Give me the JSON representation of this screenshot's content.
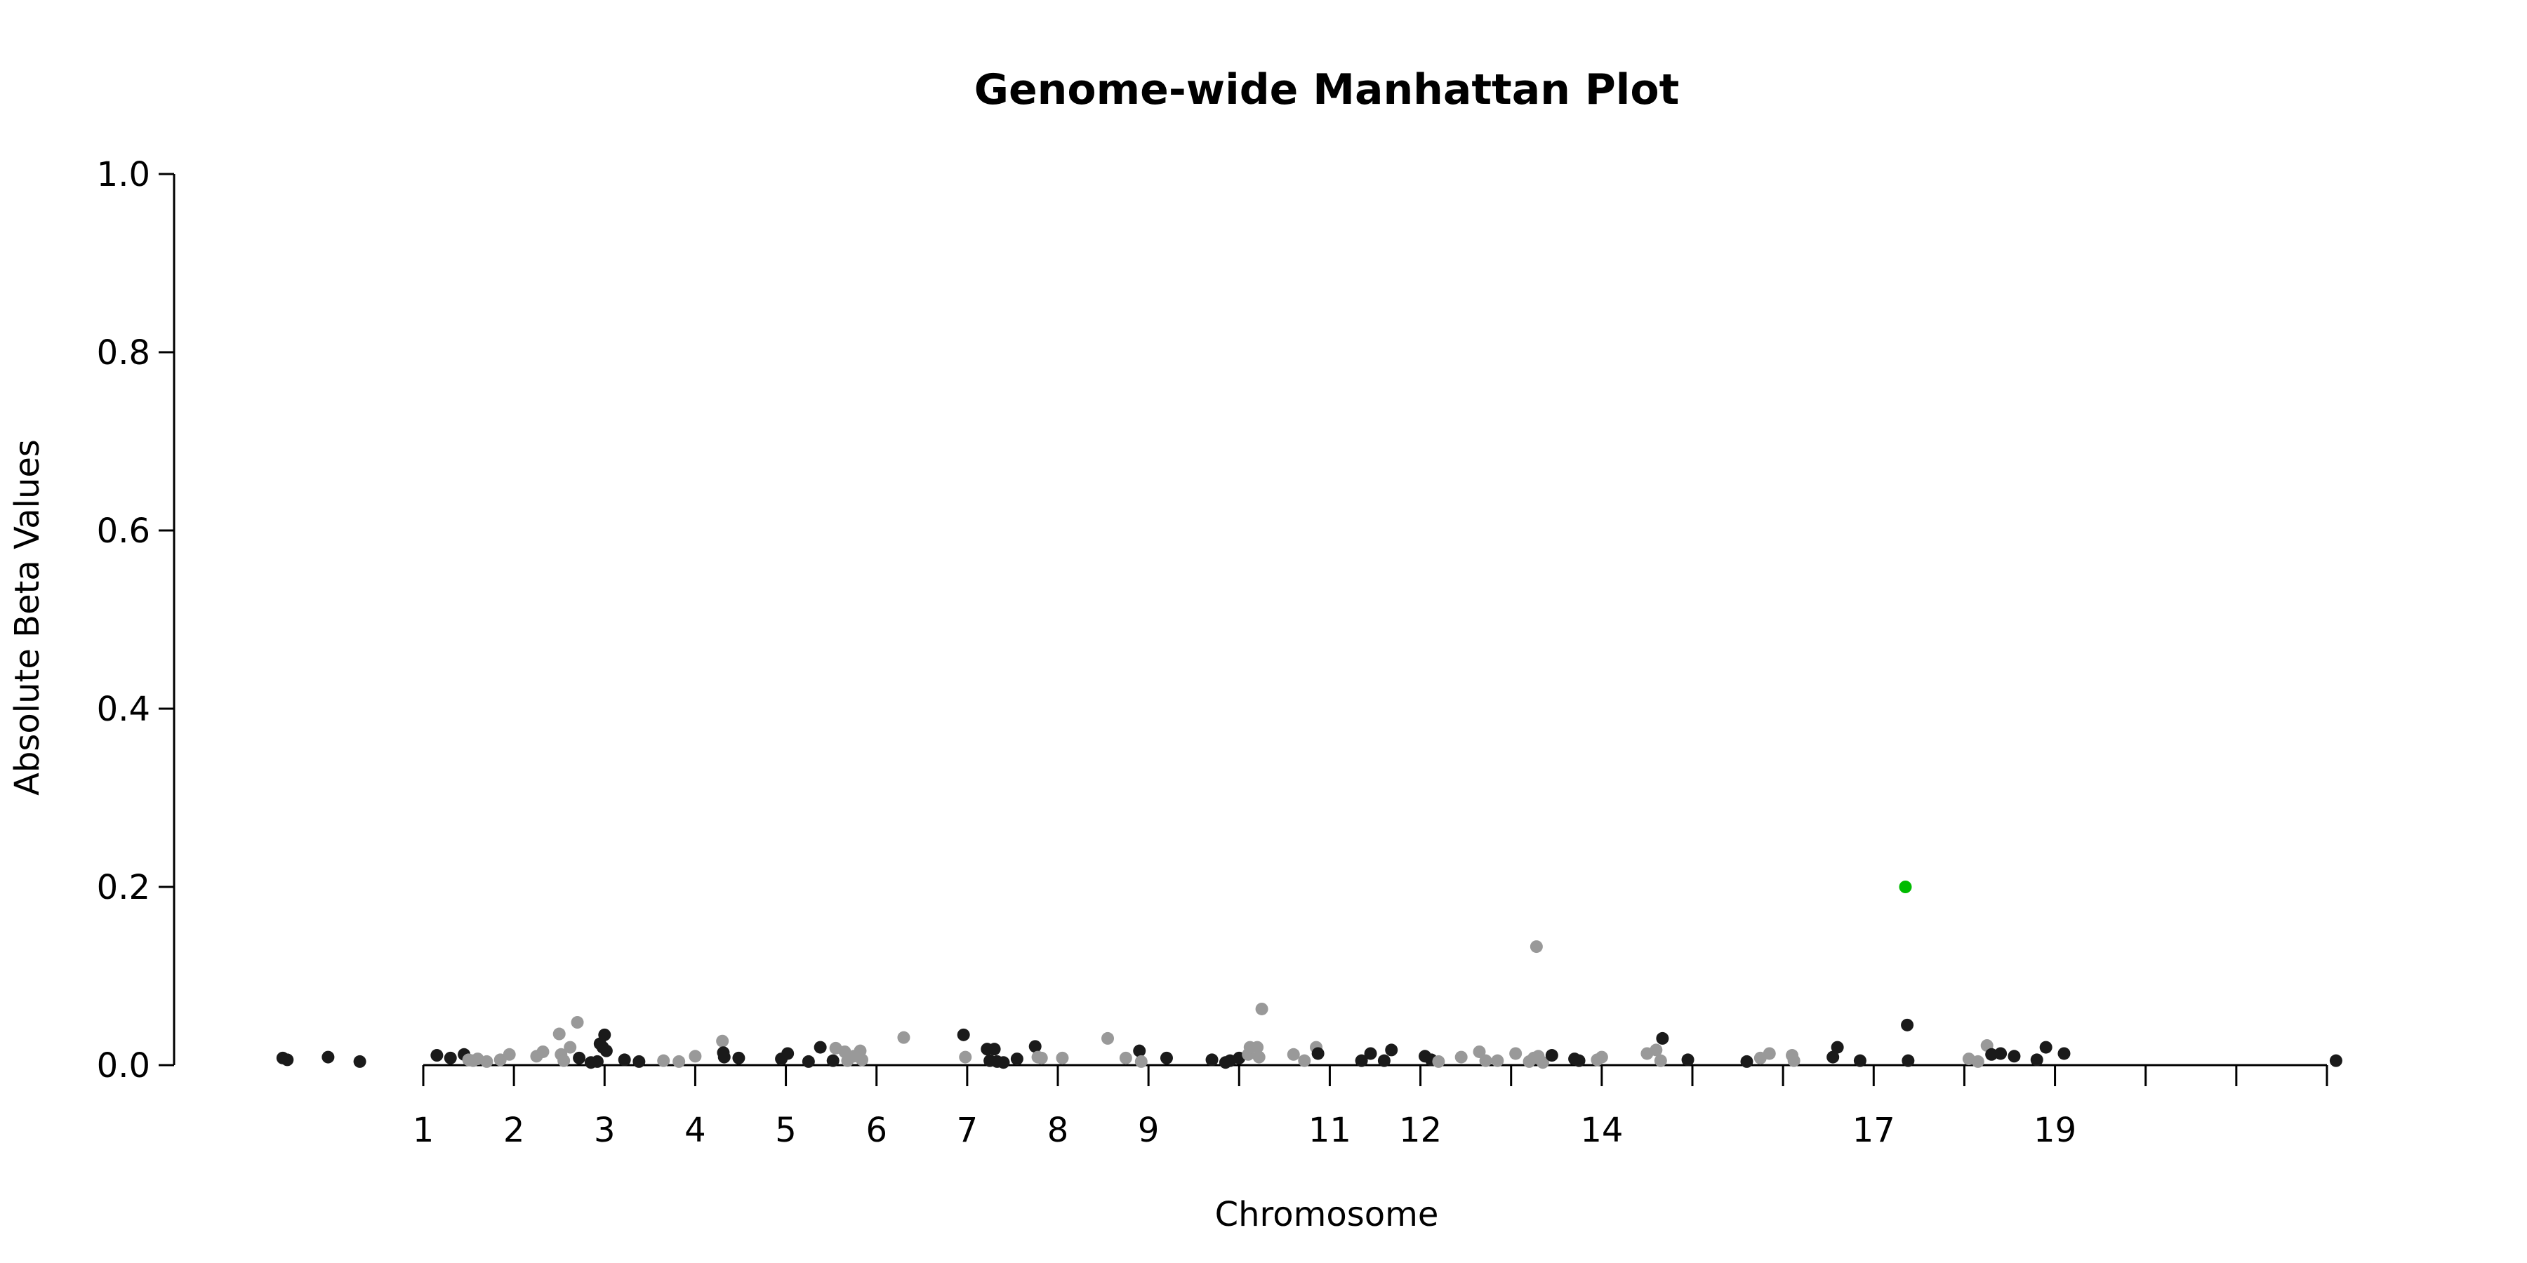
{
  "chart_data": {
    "type": "scatter",
    "title": "Genome-wide Manhattan Plot",
    "xlabel": "Chromosome",
    "ylabel": "Absolute Beta Values",
    "ylim": [
      0,
      1.0
    ],
    "yticks": [
      "0.0",
      "0.2",
      "0.4",
      "0.6",
      "0.8",
      "1.0"
    ],
    "yticks_values": [
      0,
      0.2,
      0.4,
      0.6,
      0.8,
      1.0
    ],
    "xlim": [
      -1.05,
      22.4
    ],
    "xticks": [
      {
        "pos": 1,
        "label": "1"
      },
      {
        "pos": 2,
        "label": "2"
      },
      {
        "pos": 3,
        "label": "3"
      },
      {
        "pos": 4,
        "label": "4"
      },
      {
        "pos": 5,
        "label": "5"
      },
      {
        "pos": 6,
        "label": "6"
      },
      {
        "pos": 7,
        "label": "7"
      },
      {
        "pos": 8,
        "label": "8"
      },
      {
        "pos": 9,
        "label": "9"
      },
      {
        "pos": 10,
        "label": ""
      },
      {
        "pos": 11,
        "label": "11"
      },
      {
        "pos": 12,
        "label": "12"
      },
      {
        "pos": 13,
        "label": ""
      },
      {
        "pos": 14,
        "label": "14"
      },
      {
        "pos": 15,
        "label": ""
      },
      {
        "pos": 16,
        "label": ""
      },
      {
        "pos": 17,
        "label": "17"
      },
      {
        "pos": 18,
        "label": ""
      },
      {
        "pos": 19,
        "label": "19"
      },
      {
        "pos": 20,
        "label": ""
      },
      {
        "pos": 21,
        "label": ""
      },
      {
        "pos": 22,
        "label": ""
      }
    ],
    "grid": false,
    "colors": {
      "dark": "#1a1a1a",
      "light": "#999999",
      "highlight": "#00bb00"
    },
    "points": [
      {
        "x": -0.55,
        "y": 0.008,
        "c": "dark"
      },
      {
        "x": -0.5,
        "y": 0.006,
        "c": "dark"
      },
      {
        "x": -0.05,
        "y": 0.009,
        "c": "dark"
      },
      {
        "x": 0.3,
        "y": 0.004,
        "c": "dark"
      },
      {
        "x": 1.15,
        "y": 0.011,
        "c": "dark"
      },
      {
        "x": 1.3,
        "y": 0.008,
        "c": "dark"
      },
      {
        "x": 1.45,
        "y": 0.012,
        "c": "dark"
      },
      {
        "x": 1.5,
        "y": 0.006,
        "c": "light"
      },
      {
        "x": 1.55,
        "y": 0.005,
        "c": "light"
      },
      {
        "x": 1.6,
        "y": 0.007,
        "c": "light"
      },
      {
        "x": 1.7,
        "y": 0.004,
        "c": "light"
      },
      {
        "x": 1.85,
        "y": 0.006,
        "c": "light"
      },
      {
        "x": 1.95,
        "y": 0.012,
        "c": "light"
      },
      {
        "x": 2.25,
        "y": 0.01,
        "c": "light"
      },
      {
        "x": 2.32,
        "y": 0.015,
        "c": "light"
      },
      {
        "x": 2.5,
        "y": 0.035,
        "c": "light"
      },
      {
        "x": 2.52,
        "y": 0.012,
        "c": "light"
      },
      {
        "x": 2.55,
        "y": 0.005,
        "c": "light"
      },
      {
        "x": 2.62,
        "y": 0.02,
        "c": "light"
      },
      {
        "x": 2.7,
        "y": 0.048,
        "c": "light"
      },
      {
        "x": 2.72,
        "y": 0.008,
        "c": "dark"
      },
      {
        "x": 2.85,
        "y": 0.003,
        "c": "dark"
      },
      {
        "x": 2.92,
        "y": 0.004,
        "c": "dark"
      },
      {
        "x": 2.95,
        "y": 0.024,
        "c": "dark"
      },
      {
        "x": 2.98,
        "y": 0.02,
        "c": "dark"
      },
      {
        "x": 3.0,
        "y": 0.034,
        "c": "dark"
      },
      {
        "x": 3.02,
        "y": 0.016,
        "c": "dark"
      },
      {
        "x": 3.22,
        "y": 0.006,
        "c": "dark"
      },
      {
        "x": 3.38,
        "y": 0.004,
        "c": "dark"
      },
      {
        "x": 3.65,
        "y": 0.005,
        "c": "light"
      },
      {
        "x": 3.82,
        "y": 0.004,
        "c": "light"
      },
      {
        "x": 4.0,
        "y": 0.01,
        "c": "light"
      },
      {
        "x": 4.3,
        "y": 0.027,
        "c": "light"
      },
      {
        "x": 4.31,
        "y": 0.014,
        "c": "dark"
      },
      {
        "x": 4.32,
        "y": 0.009,
        "c": "dark"
      },
      {
        "x": 4.48,
        "y": 0.008,
        "c": "dark"
      },
      {
        "x": 4.95,
        "y": 0.007,
        "c": "dark"
      },
      {
        "x": 5.02,
        "y": 0.013,
        "c": "dark"
      },
      {
        "x": 5.25,
        "y": 0.004,
        "c": "dark"
      },
      {
        "x": 5.38,
        "y": 0.02,
        "c": "dark"
      },
      {
        "x": 5.52,
        "y": 0.005,
        "c": "dark"
      },
      {
        "x": 5.55,
        "y": 0.019,
        "c": "light"
      },
      {
        "x": 5.65,
        "y": 0.015,
        "c": "light"
      },
      {
        "x": 5.68,
        "y": 0.005,
        "c": "light"
      },
      {
        "x": 5.75,
        "y": 0.01,
        "c": "light"
      },
      {
        "x": 5.82,
        "y": 0.016,
        "c": "light"
      },
      {
        "x": 5.84,
        "y": 0.006,
        "c": "light"
      },
      {
        "x": 6.3,
        "y": 0.031,
        "c": "light"
      },
      {
        "x": 6.96,
        "y": 0.034,
        "c": "dark"
      },
      {
        "x": 6.98,
        "y": 0.009,
        "c": "light"
      },
      {
        "x": 7.22,
        "y": 0.018,
        "c": "dark"
      },
      {
        "x": 7.25,
        "y": 0.005,
        "c": "dark"
      },
      {
        "x": 7.3,
        "y": 0.018,
        "c": "dark"
      },
      {
        "x": 7.33,
        "y": 0.004,
        "c": "dark"
      },
      {
        "x": 7.4,
        "y": 0.003,
        "c": "dark"
      },
      {
        "x": 7.55,
        "y": 0.007,
        "c": "dark"
      },
      {
        "x": 7.75,
        "y": 0.021,
        "c": "dark"
      },
      {
        "x": 7.78,
        "y": 0.009,
        "c": "light"
      },
      {
        "x": 7.82,
        "y": 0.008,
        "c": "light"
      },
      {
        "x": 8.05,
        "y": 0.008,
        "c": "light"
      },
      {
        "x": 8.55,
        "y": 0.03,
        "c": "light"
      },
      {
        "x": 8.75,
        "y": 0.008,
        "c": "light"
      },
      {
        "x": 8.9,
        "y": 0.016,
        "c": "dark"
      },
      {
        "x": 8.92,
        "y": 0.004,
        "c": "light"
      },
      {
        "x": 9.2,
        "y": 0.008,
        "c": "dark"
      },
      {
        "x": 9.7,
        "y": 0.006,
        "c": "dark"
      },
      {
        "x": 9.85,
        "y": 0.003,
        "c": "dark"
      },
      {
        "x": 9.9,
        "y": 0.005,
        "c": "dark"
      },
      {
        "x": 10.0,
        "y": 0.008,
        "c": "dark"
      },
      {
        "x": 10.1,
        "y": 0.012,
        "c": "light"
      },
      {
        "x": 10.12,
        "y": 0.02,
        "c": "light"
      },
      {
        "x": 10.2,
        "y": 0.02,
        "c": "light"
      },
      {
        "x": 10.22,
        "y": 0.009,
        "c": "light"
      },
      {
        "x": 10.25,
        "y": 0.063,
        "c": "light"
      },
      {
        "x": 10.6,
        "y": 0.012,
        "c": "light"
      },
      {
        "x": 10.72,
        "y": 0.005,
        "c": "light"
      },
      {
        "x": 10.85,
        "y": 0.02,
        "c": "light"
      },
      {
        "x": 10.87,
        "y": 0.013,
        "c": "dark"
      },
      {
        "x": 11.35,
        "y": 0.005,
        "c": "dark"
      },
      {
        "x": 11.45,
        "y": 0.013,
        "c": "dark"
      },
      {
        "x": 11.6,
        "y": 0.005,
        "c": "dark"
      },
      {
        "x": 11.68,
        "y": 0.017,
        "c": "dark"
      },
      {
        "x": 12.05,
        "y": 0.01,
        "c": "dark"
      },
      {
        "x": 12.12,
        "y": 0.006,
        "c": "dark"
      },
      {
        "x": 12.2,
        "y": 0.004,
        "c": "light"
      },
      {
        "x": 12.45,
        "y": 0.009,
        "c": "light"
      },
      {
        "x": 12.65,
        "y": 0.015,
        "c": "light"
      },
      {
        "x": 12.72,
        "y": 0.005,
        "c": "light"
      },
      {
        "x": 12.85,
        "y": 0.005,
        "c": "light"
      },
      {
        "x": 13.05,
        "y": 0.013,
        "c": "light"
      },
      {
        "x": 13.2,
        "y": 0.004,
        "c": "light"
      },
      {
        "x": 13.25,
        "y": 0.008,
        "c": "light"
      },
      {
        "x": 13.28,
        "y": 0.133,
        "c": "light"
      },
      {
        "x": 13.3,
        "y": 0.01,
        "c": "light"
      },
      {
        "x": 13.35,
        "y": 0.003,
        "c": "light"
      },
      {
        "x": 13.45,
        "y": 0.011,
        "c": "dark"
      },
      {
        "x": 13.7,
        "y": 0.007,
        "c": "dark"
      },
      {
        "x": 13.75,
        "y": 0.005,
        "c": "dark"
      },
      {
        "x": 13.95,
        "y": 0.006,
        "c": "light"
      },
      {
        "x": 14.0,
        "y": 0.009,
        "c": "light"
      },
      {
        "x": 14.5,
        "y": 0.013,
        "c": "light"
      },
      {
        "x": 14.6,
        "y": 0.017,
        "c": "light"
      },
      {
        "x": 14.65,
        "y": 0.005,
        "c": "light"
      },
      {
        "x": 14.67,
        "y": 0.03,
        "c": "dark"
      },
      {
        "x": 14.95,
        "y": 0.006,
        "c": "dark"
      },
      {
        "x": 15.6,
        "y": 0.004,
        "c": "dark"
      },
      {
        "x": 15.75,
        "y": 0.008,
        "c": "light"
      },
      {
        "x": 15.85,
        "y": 0.013,
        "c": "light"
      },
      {
        "x": 16.1,
        "y": 0.011,
        "c": "light"
      },
      {
        "x": 16.12,
        "y": 0.005,
        "c": "light"
      },
      {
        "x": 16.55,
        "y": 0.009,
        "c": "dark"
      },
      {
        "x": 16.6,
        "y": 0.02,
        "c": "dark"
      },
      {
        "x": 16.85,
        "y": 0.005,
        "c": "dark"
      },
      {
        "x": 17.35,
        "y": 0.2,
        "c": "highlight"
      },
      {
        "x": 17.37,
        "y": 0.045,
        "c": "dark"
      },
      {
        "x": 17.38,
        "y": 0.005,
        "c": "dark"
      },
      {
        "x": 18.05,
        "y": 0.007,
        "c": "light"
      },
      {
        "x": 18.15,
        "y": 0.004,
        "c": "light"
      },
      {
        "x": 18.25,
        "y": 0.022,
        "c": "light"
      },
      {
        "x": 18.3,
        "y": 0.012,
        "c": "dark"
      },
      {
        "x": 18.4,
        "y": 0.013,
        "c": "dark"
      },
      {
        "x": 18.55,
        "y": 0.01,
        "c": "dark"
      },
      {
        "x": 18.8,
        "y": 0.006,
        "c": "dark"
      },
      {
        "x": 18.9,
        "y": 0.02,
        "c": "dark"
      },
      {
        "x": 19.1,
        "y": 0.013,
        "c": "dark"
      },
      {
        "x": 22.1,
        "y": 0.005,
        "c": "dark"
      }
    ]
  }
}
